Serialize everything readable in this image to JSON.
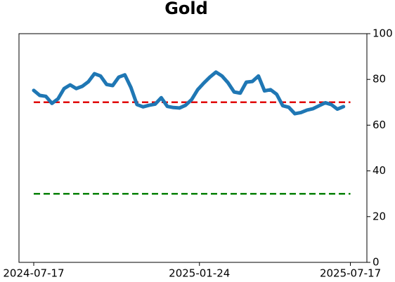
{
  "chart_data": {
    "type": "line",
    "title": "Gold",
    "x": [
      "2024-07-17",
      "2024-07-24",
      "2024-07-31",
      "2024-08-07",
      "2024-08-14",
      "2024-08-21",
      "2024-08-28",
      "2024-09-04",
      "2024-09-11",
      "2024-09-18",
      "2024-09-25",
      "2024-10-02",
      "2024-10-09",
      "2024-10-16",
      "2024-10-23",
      "2024-10-30",
      "2024-11-06",
      "2024-11-13",
      "2024-11-20",
      "2024-11-27",
      "2024-12-04",
      "2024-12-11",
      "2024-12-18",
      "2024-12-25",
      "2025-01-01",
      "2025-01-08",
      "2025-01-15",
      "2025-01-22",
      "2025-01-29",
      "2025-02-05",
      "2025-02-12",
      "2025-02-19",
      "2025-02-26",
      "2025-03-05",
      "2025-03-12",
      "2025-03-19",
      "2025-03-26",
      "2025-04-02",
      "2025-04-09",
      "2025-04-16",
      "2025-04-23",
      "2025-04-30",
      "2025-05-07",
      "2025-05-14",
      "2025-05-21",
      "2025-05-28",
      "2025-06-04",
      "2025-06-11",
      "2025-06-18",
      "2025-06-25",
      "2025-07-02",
      "2025-07-09"
    ],
    "series": [
      {
        "color": "#1f77b4",
        "values": [
          75.2,
          73,
          72.6,
          69.5,
          71.5,
          76,
          77.6,
          76,
          77,
          79,
          82.5,
          81.5,
          77.8,
          77.3,
          81,
          82,
          76.5,
          69,
          68,
          68.7,
          69.2,
          72,
          68.2,
          67.7,
          67.5,
          68.7,
          71.2,
          75.5,
          78.4,
          81,
          83.2,
          81.5,
          78.5,
          74.5,
          74,
          78.8,
          79.1,
          81.5,
          75,
          75.5,
          73.5,
          68.5,
          67.8,
          65,
          65.5,
          66.6,
          67.2,
          68.5,
          69.8,
          69,
          67,
          68.1
        ]
      }
    ],
    "hlines": [
      {
        "value": 70,
        "color": "#e00000"
      },
      {
        "value": 30,
        "color": "#008000"
      }
    ],
    "xlim": [
      "2024-06-30",
      "2025-08-05"
    ],
    "xticks": [
      "2024-07-17",
      "2025-01-24",
      "2025-07-17"
    ],
    "ylim": [
      0,
      100
    ],
    "yticks": [
      0,
      20,
      40,
      60,
      80,
      100
    ],
    "y_axis_side": "right"
  }
}
